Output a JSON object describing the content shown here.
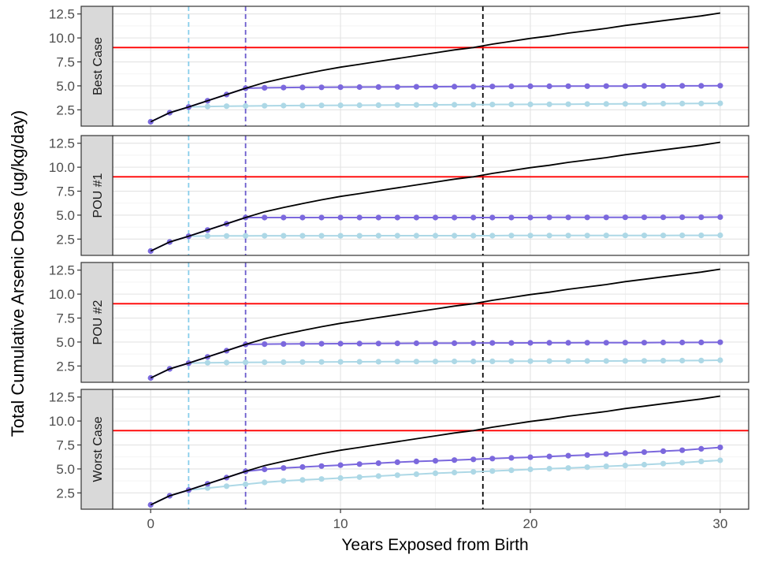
{
  "chart_data": {
    "type": "line",
    "xlabel": "Years Exposed from Birth",
    "ylabel": "Total Cumulative Arsenic Dose (ug/kg/day)",
    "xlim": [
      -2,
      31.5
    ],
    "ylim": [
      0.8,
      13.3
    ],
    "x_ticks": [
      0,
      10,
      20,
      30
    ],
    "y_ticks": [
      2.5,
      5.0,
      7.5,
      10.0,
      12.5
    ],
    "y_tick_labels": [
      "2.5",
      "5.0",
      "7.5",
      "10.0",
      "12.5"
    ],
    "grid": true,
    "legend": "none",
    "hline": {
      "y": 9.0,
      "color": "#ff0000"
    },
    "vlines": [
      {
        "x": 2,
        "color": "#87ceeb",
        "style": "dashed"
      },
      {
        "x": 5,
        "color": "#6a5acd",
        "style": "dashed"
      },
      {
        "x": 17.5,
        "color": "#000000",
        "style": "dashed"
      }
    ],
    "colors": {
      "baseline": "#000000",
      "intervention_year5": "#7b68dd",
      "intervention_year2": "#add8e6"
    },
    "baseline": {
      "x": [
        0,
        1,
        2,
        3,
        4,
        5,
        6,
        7,
        8,
        9,
        10,
        11,
        12,
        13,
        14,
        15,
        16,
        17,
        18,
        19,
        20,
        21,
        22,
        23,
        24,
        25,
        26,
        27,
        28,
        29,
        30
      ],
      "y": [
        1.25,
        2.2,
        2.8,
        3.45,
        4.1,
        4.75,
        5.35,
        5.8,
        6.2,
        6.6,
        6.95,
        7.25,
        7.55,
        7.85,
        8.15,
        8.45,
        8.75,
        9.0,
        9.35,
        9.65,
        9.95,
        10.2,
        10.5,
        10.75,
        11.0,
        11.3,
        11.55,
        11.8,
        12.05,
        12.3,
        12.6
      ]
    },
    "panels": [
      {
        "strip": "Best Case",
        "series_year5": {
          "x": [
            0,
            1,
            2,
            3,
            4,
            5,
            6,
            7,
            8,
            9,
            10,
            11,
            12,
            13,
            14,
            15,
            16,
            17,
            18,
            19,
            20,
            21,
            22,
            23,
            24,
            25,
            26,
            27,
            28,
            29,
            30
          ],
          "y": [
            1.25,
            2.2,
            2.8,
            3.45,
            4.1,
            4.75,
            4.8,
            4.82,
            4.84,
            4.85,
            4.86,
            4.87,
            4.88,
            4.89,
            4.9,
            4.91,
            4.92,
            4.93,
            4.94,
            4.95,
            4.96,
            4.96,
            4.97,
            4.97,
            4.98,
            4.98,
            4.99,
            4.99,
            5.0,
            5.0,
            5.02
          ]
        },
        "series_year2": {
          "x": [
            0,
            1,
            2,
            3,
            4,
            5,
            6,
            7,
            8,
            9,
            10,
            11,
            12,
            13,
            14,
            15,
            16,
            17,
            18,
            19,
            20,
            21,
            22,
            23,
            24,
            25,
            26,
            27,
            28,
            29,
            30
          ],
          "y": [
            1.25,
            2.2,
            2.8,
            2.85,
            2.88,
            2.9,
            2.92,
            2.94,
            2.95,
            2.96,
            2.97,
            2.98,
            2.99,
            3.0,
            3.01,
            3.02,
            3.03,
            3.04,
            3.05,
            3.06,
            3.07,
            3.08,
            3.09,
            3.1,
            3.11,
            3.12,
            3.13,
            3.14,
            3.15,
            3.16,
            3.18
          ]
        }
      },
      {
        "strip": "POU #1",
        "series_year5": {
          "x": [
            0,
            1,
            2,
            3,
            4,
            5,
            6,
            7,
            8,
            9,
            10,
            11,
            12,
            13,
            14,
            15,
            16,
            17,
            18,
            19,
            20,
            21,
            22,
            23,
            24,
            25,
            26,
            27,
            28,
            29,
            30
          ],
          "y": [
            1.25,
            2.2,
            2.8,
            3.45,
            4.1,
            4.75,
            4.75,
            4.75,
            4.75,
            4.75,
            4.75,
            4.75,
            4.75,
            4.75,
            4.75,
            4.75,
            4.75,
            4.75,
            4.75,
            4.75,
            4.75,
            4.76,
            4.76,
            4.76,
            4.76,
            4.77,
            4.77,
            4.77,
            4.78,
            4.78,
            4.8
          ]
        },
        "series_year2": {
          "x": [
            0,
            1,
            2,
            3,
            4,
            5,
            6,
            7,
            8,
            9,
            10,
            11,
            12,
            13,
            14,
            15,
            16,
            17,
            18,
            19,
            20,
            21,
            22,
            23,
            24,
            25,
            26,
            27,
            28,
            29,
            30
          ],
          "y": [
            1.25,
            2.2,
            2.8,
            2.82,
            2.83,
            2.84,
            2.85,
            2.85,
            2.85,
            2.85,
            2.85,
            2.85,
            2.86,
            2.86,
            2.86,
            2.86,
            2.86,
            2.86,
            2.86,
            2.87,
            2.87,
            2.87,
            2.87,
            2.87,
            2.88,
            2.88,
            2.88,
            2.88,
            2.89,
            2.89,
            2.9
          ]
        }
      },
      {
        "strip": "POU #2",
        "series_year5": {
          "x": [
            0,
            1,
            2,
            3,
            4,
            5,
            6,
            7,
            8,
            9,
            10,
            11,
            12,
            13,
            14,
            15,
            16,
            17,
            18,
            19,
            20,
            21,
            22,
            23,
            24,
            25,
            26,
            27,
            28,
            29,
            30
          ],
          "y": [
            1.25,
            2.2,
            2.8,
            3.45,
            4.1,
            4.75,
            4.78,
            4.8,
            4.81,
            4.82,
            4.83,
            4.84,
            4.85,
            4.86,
            4.87,
            4.88,
            4.88,
            4.89,
            4.9,
            4.9,
            4.91,
            4.92,
            4.92,
            4.93,
            4.93,
            4.94,
            4.94,
            4.95,
            4.95,
            4.96,
            4.98
          ]
        },
        "series_year2": {
          "x": [
            0,
            1,
            2,
            3,
            4,
            5,
            6,
            7,
            8,
            9,
            10,
            11,
            12,
            13,
            14,
            15,
            16,
            17,
            18,
            19,
            20,
            21,
            22,
            23,
            24,
            25,
            26,
            27,
            28,
            29,
            30
          ],
          "y": [
            1.25,
            2.2,
            2.8,
            2.84,
            2.86,
            2.88,
            2.89,
            2.9,
            2.91,
            2.92,
            2.93,
            2.94,
            2.95,
            2.96,
            2.96,
            2.97,
            2.98,
            2.98,
            2.99,
            3.0,
            3.0,
            3.01,
            3.01,
            3.02,
            3.02,
            3.03,
            3.04,
            3.05,
            3.06,
            3.07,
            3.1
          ]
        }
      },
      {
        "strip": "Worst Case",
        "series_year5": {
          "x": [
            0,
            1,
            2,
            3,
            4,
            5,
            6,
            7,
            8,
            9,
            10,
            11,
            12,
            13,
            14,
            15,
            16,
            17,
            18,
            19,
            20,
            21,
            22,
            23,
            24,
            25,
            26,
            27,
            28,
            29,
            30
          ],
          "y": [
            1.25,
            2.2,
            2.8,
            3.45,
            4.1,
            4.75,
            4.95,
            5.1,
            5.2,
            5.3,
            5.4,
            5.5,
            5.6,
            5.7,
            5.78,
            5.85,
            5.92,
            6.0,
            6.08,
            6.15,
            6.22,
            6.3,
            6.38,
            6.45,
            6.55,
            6.65,
            6.75,
            6.85,
            6.95,
            7.1,
            7.25
          ]
        },
        "series_year2": {
          "x": [
            0,
            1,
            2,
            3,
            4,
            5,
            6,
            7,
            8,
            9,
            10,
            11,
            12,
            13,
            14,
            15,
            16,
            17,
            18,
            19,
            20,
            21,
            22,
            23,
            24,
            25,
            26,
            27,
            28,
            29,
            30
          ],
          "y": [
            1.25,
            2.2,
            2.8,
            3.0,
            3.2,
            3.4,
            3.6,
            3.75,
            3.85,
            3.95,
            4.05,
            4.15,
            4.25,
            4.35,
            4.45,
            4.55,
            4.62,
            4.7,
            4.78,
            4.86,
            4.95,
            5.03,
            5.1,
            5.18,
            5.27,
            5.36,
            5.45,
            5.55,
            5.65,
            5.78,
            5.9
          ]
        }
      }
    ]
  }
}
